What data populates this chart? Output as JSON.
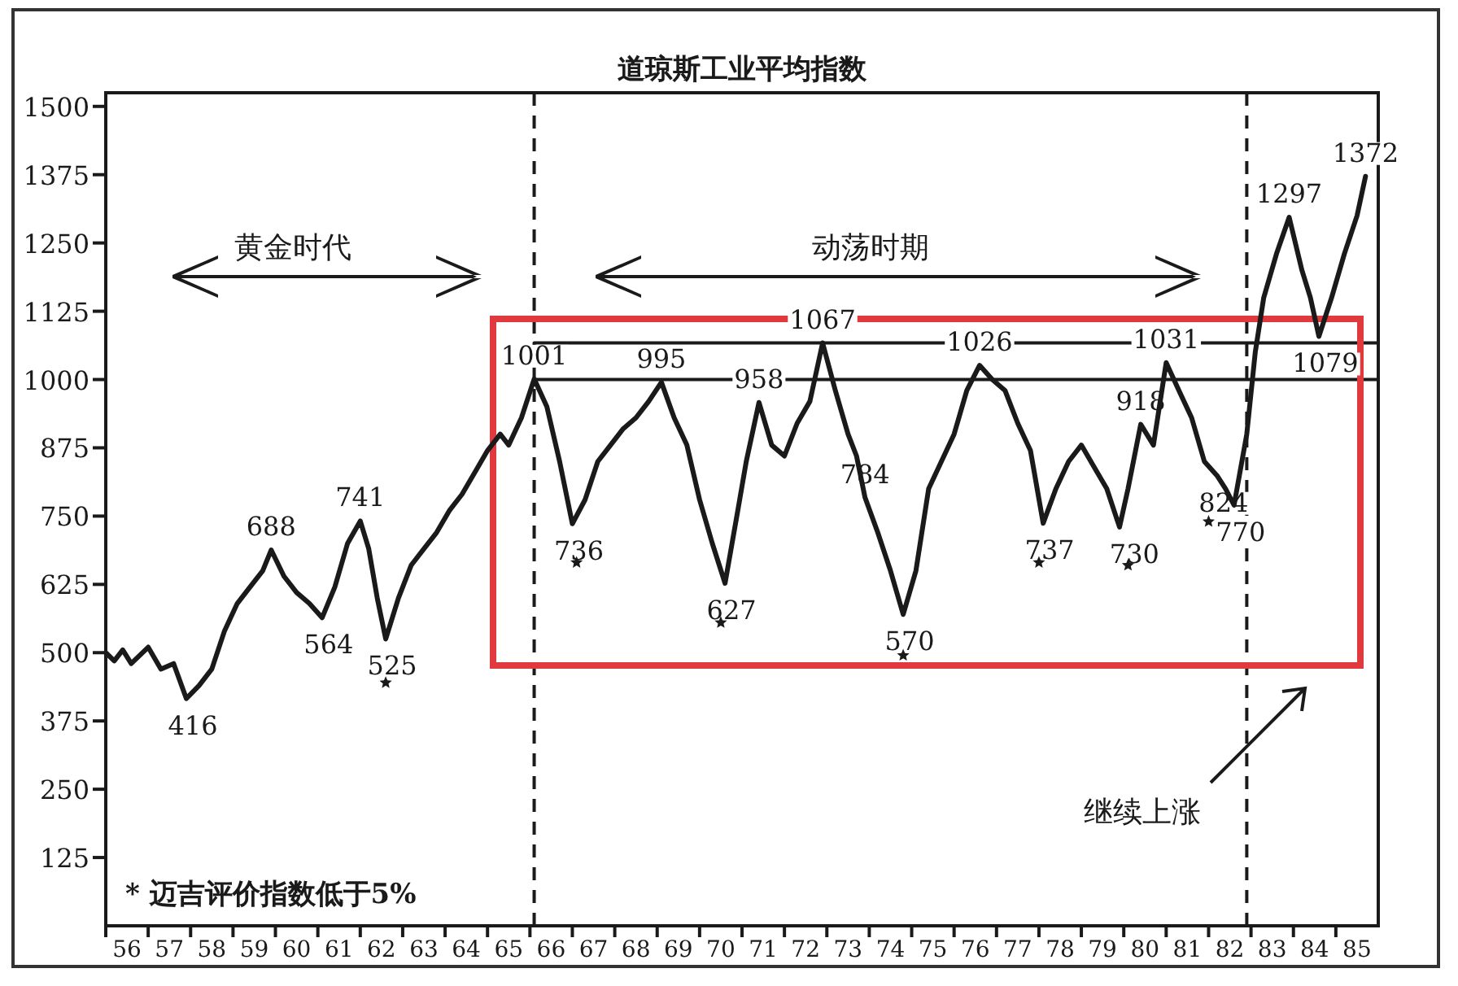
{
  "chart_data": {
    "type": "line",
    "title": "道琼斯工业平均指数",
    "series": [
      {
        "color": "#1a1a1a",
        "x": [
          56.0,
          56.2,
          56.4,
          56.6,
          56.8,
          57.0,
          57.3,
          57.6,
          57.9,
          58.2,
          58.5,
          58.8,
          59.1,
          59.4,
          59.7,
          59.9,
          60.2,
          60.5,
          60.8,
          61.1,
          61.4,
          61.7,
          62.0,
          62.2,
          62.4,
          62.6,
          62.9,
          63.2,
          63.5,
          63.8,
          64.1,
          64.4,
          64.7,
          65.0,
          65.3,
          65.5,
          65.8,
          66.1,
          66.4,
          66.7,
          67.0,
          67.3,
          67.6,
          67.9,
          68.2,
          68.5,
          68.8,
          69.1,
          69.4,
          69.7,
          70.0,
          70.3,
          70.6,
          70.9,
          71.1,
          71.4,
          71.7,
          72.0,
          72.3,
          72.6,
          72.9,
          73.2,
          73.5,
          73.7,
          73.9,
          74.2,
          74.5,
          74.8,
          75.1,
          75.4,
          75.7,
          76.0,
          76.3,
          76.6,
          76.9,
          77.2,
          77.5,
          77.8,
          78.1,
          78.4,
          78.7,
          79.0,
          79.3,
          79.6,
          79.9,
          80.1,
          80.4,
          80.7,
          81.0,
          81.3,
          81.6,
          81.9,
          82.2,
          82.4,
          82.6,
          82.9,
          83.1,
          83.3,
          83.6,
          83.9,
          84.2,
          84.4,
          84.6,
          84.9,
          85.2,
          85.5,
          85.7
        ],
        "values": [
          500,
          485,
          505,
          480,
          495,
          510,
          470,
          480,
          416,
          440,
          470,
          540,
          590,
          620,
          650,
          688,
          640,
          610,
          590,
          564,
          620,
          700,
          741,
          690,
          600,
          525,
          600,
          660,
          690,
          720,
          760,
          790,
          830,
          870,
          900,
          880,
          930,
          1001,
          950,
          850,
          736,
          780,
          850,
          880,
          910,
          930,
          960,
          995,
          930,
          880,
          780,
          700,
          627,
          760,
          850,
          958,
          880,
          860,
          920,
          960,
          1067,
          980,
          900,
          860,
          784,
          720,
          650,
          570,
          650,
          800,
          850,
          900,
          980,
          1026,
          1000,
          980,
          920,
          870,
          737,
          800,
          850,
          880,
          840,
          800,
          730,
          800,
          918,
          880,
          1031,
          980,
          930,
          850,
          824,
          800,
          770,
          900,
          1050,
          1150,
          1230,
          1297,
          1200,
          1150,
          1079,
          1150,
          1230,
          1300,
          1372
        ]
      },
      {
        "color": "#1a1a1a",
        "x": [
          66.1,
          86.0
        ],
        "values": [
          1067,
          1067
        ]
      },
      {
        "color": "#1a1a1a",
        "x": [
          66.1,
          86.0
        ],
        "values": [
          1000,
          1000
        ]
      },
      {
        "type": "scatter",
        "marker": "star",
        "color": "#1a1a1a",
        "x": [
          62.6,
          67.1,
          70.5,
          74.8,
          78.0,
          80.1,
          82.0
        ],
        "values": [
          445,
          665,
          555,
          495,
          665,
          660,
          740
        ]
      }
    ],
    "annotations": [
      {
        "text": "416",
        "x": 57.9,
        "y": 416
      },
      {
        "text": "688",
        "x": 59.9,
        "y": 688
      },
      {
        "text": "564",
        "x": 61.1,
        "y": 564
      },
      {
        "text": "741",
        "x": 62.0,
        "y": 741
      },
      {
        "text": "525",
        "x": 62.6,
        "y": 525
      },
      {
        "text": "1001",
        "x": 66.1,
        "y": 1001
      },
      {
        "text": "736",
        "x": 67.0,
        "y": 736
      },
      {
        "text": "995",
        "x": 69.1,
        "y": 995
      },
      {
        "text": "627",
        "x": 70.6,
        "y": 627
      },
      {
        "text": "958",
        "x": 71.4,
        "y": 958
      },
      {
        "text": "1067",
        "x": 72.9,
        "y": 1067
      },
      {
        "text": "784",
        "x": 73.9,
        "y": 784
      },
      {
        "text": "570",
        "x": 74.8,
        "y": 570
      },
      {
        "text": "1026",
        "x": 76.6,
        "y": 1026
      },
      {
        "text": "737",
        "x": 78.1,
        "y": 737
      },
      {
        "text": "918",
        "x": 80.4,
        "y": 918
      },
      {
        "text": "730",
        "x": 80.1,
        "y": 730
      },
      {
        "text": "1031",
        "x": 81.0,
        "y": 1031
      },
      {
        "text": "824",
        "x": 82.2,
        "y": 824
      },
      {
        "text": "770",
        "x": 82.6,
        "y": 770
      },
      {
        "text": "1297",
        "x": 83.9,
        "y": 1297
      },
      {
        "text": "1079",
        "x": 84.6,
        "y": 1079
      },
      {
        "text": "1372",
        "x": 85.7,
        "y": 1372
      },
      "黄金时代",
      "动荡时期",
      "继续上涨",
      "* 迈吉评价指数低于5%"
    ],
    "ref_lines": [
      {
        "axis": "x",
        "value": 66.1,
        "line_style": "dashed"
      },
      {
        "axis": "x",
        "value": 82.9,
        "line_style": "dashed"
      }
    ],
    "xlim": [
      56,
      86
    ],
    "ylim": [
      0,
      1525
    ],
    "xticks": [
      {
        "value": 56.5,
        "label": "56"
      },
      {
        "value": 57.5,
        "label": "57"
      },
      {
        "value": 58.5,
        "label": "58"
      },
      {
        "value": 59.5,
        "label": "59"
      },
      {
        "value": 60.5,
        "label": "60"
      },
      {
        "value": 61.5,
        "label": "61"
      },
      {
        "value": 62.5,
        "label": "62"
      },
      {
        "value": 63.5,
        "label": "63"
      },
      {
        "value": 64.5,
        "label": "64"
      },
      {
        "value": 65.5,
        "label": "65"
      },
      {
        "value": 66.5,
        "label": "66"
      },
      {
        "value": 67.5,
        "label": "67"
      },
      {
        "value": 68.5,
        "label": "68"
      },
      {
        "value": 69.5,
        "label": "69"
      },
      {
        "value": 70.5,
        "label": "70"
      },
      {
        "value": 71.5,
        "label": "71"
      },
      {
        "value": 72.5,
        "label": "72"
      },
      {
        "value": 73.5,
        "label": "73"
      },
      {
        "value": 74.5,
        "label": "74"
      },
      {
        "value": 75.5,
        "label": "75"
      },
      {
        "value": 76.5,
        "label": "76"
      },
      {
        "value": 77.5,
        "label": "77"
      },
      {
        "value": 78.5,
        "label": "78"
      },
      {
        "value": 79.5,
        "label": "79"
      },
      {
        "value": 80.5,
        "label": "80"
      },
      {
        "value": 81.5,
        "label": "81"
      },
      {
        "value": 82.5,
        "label": "82"
      },
      {
        "value": 83.5,
        "label": "83"
      },
      {
        "value": 84.5,
        "label": "84"
      },
      {
        "value": 85.5,
        "label": "85"
      }
    ],
    "yticks": [
      125,
      250,
      375,
      500,
      625,
      750,
      875,
      1000,
      1125,
      1250,
      1375,
      1500
    ],
    "grid": false
  }
}
